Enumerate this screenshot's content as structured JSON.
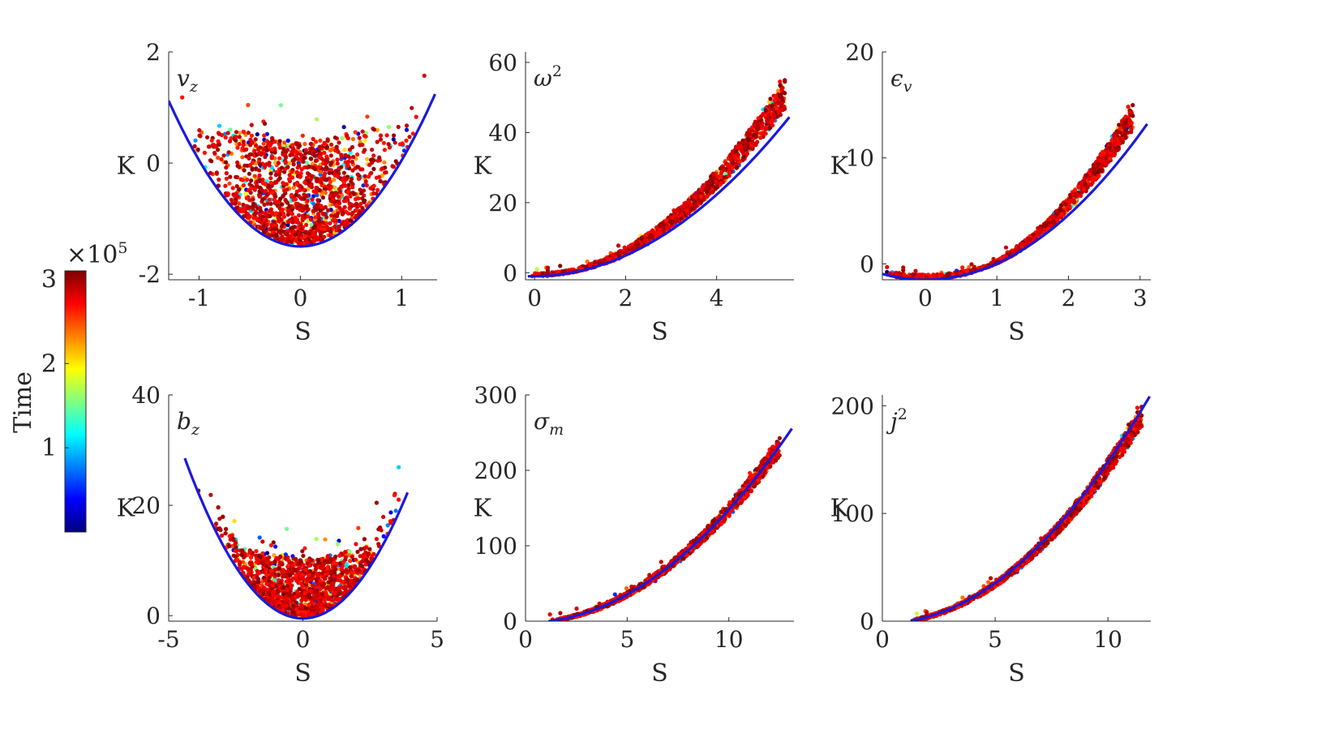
{
  "figure": {
    "colorbar": {
      "label": "Time",
      "multiplier": "×10",
      "exponent": "5",
      "ticks": [
        1,
        2,
        3
      ],
      "range": [
        0,
        3.1
      ],
      "colormap": [
        "#00007f",
        "#0000ff",
        "#0080ff",
        "#00ffff",
        "#80ff80",
        "#ffff00",
        "#ff8000",
        "#ff0000",
        "#7f0000"
      ]
    },
    "fit_color": "#1a1adc"
  },
  "chart_data": [
    {
      "type": "scatter",
      "title": "v",
      "title_sub": "z",
      "xlabel": "S",
      "ylabel": "K",
      "xlim": [
        -1.3,
        1.35
      ],
      "ylim": [
        -2.1,
        2
      ],
      "xticks": [
        -1,
        0,
        1
      ],
      "yticks": [
        -2,
        0,
        2
      ],
      "fit": {
        "kind": "parabola",
        "a": 1.5,
        "b": 0,
        "c": -1.5,
        "x_range": [
          -1.3,
          1.33
        ]
      },
      "cloud": {
        "xc": 0,
        "ymin_offset": 0.05,
        "spread": 0.6,
        "n": 1500
      }
    },
    {
      "type": "scatter",
      "title": "ω",
      "title_sup": "2",
      "xlabel": "S",
      "ylabel": "K",
      "xlim": [
        -0.2,
        5.7
      ],
      "ylim": [
        -2,
        63
      ],
      "xticks": [
        0,
        2,
        4
      ],
      "yticks": [
        0,
        20,
        40,
        60
      ],
      "fit": {
        "kind": "parabola",
        "a": 1.43,
        "b": 0.3,
        "c": -1.5,
        "x_range": [
          -0.15,
          5.6
        ]
      },
      "cloud": {
        "x_range": [
          -0.1,
          5.5
        ],
        "up": 0.15,
        "spread": 1.0,
        "n": 1300
      }
    },
    {
      "type": "scatter",
      "title": "ϵ",
      "title_sub": "v",
      "xlabel": "S",
      "ylabel": "K",
      "xlim": [
        -0.6,
        3.15
      ],
      "ylim": [
        -1.5,
        20
      ],
      "xticks": [
        0,
        1,
        2,
        3
      ],
      "yticks": [
        0,
        10,
        20
      ],
      "fit": {
        "kind": "parabola",
        "a": 1.53,
        "b": 0,
        "c": -1.5,
        "x_range": [
          -0.6,
          3.1
        ]
      },
      "cloud": {
        "x_range": [
          -0.55,
          2.9
        ],
        "up": 0.18,
        "spread": 1.0,
        "n": 1300
      }
    },
    {
      "type": "scatter",
      "title": "b",
      "title_sub": "z",
      "xlabel": "S",
      "ylabel": "K",
      "xlim": [
        -5,
        5
      ],
      "ylim": [
        -1,
        40
      ],
      "xticks": [
        -5,
        0,
        5
      ],
      "yticks": [
        0,
        20,
        40
      ],
      "fit": {
        "kind": "parabola",
        "a": 1.5,
        "b": 0,
        "c": -1.5,
        "x_range": [
          -4.4,
          3.9
        ]
      },
      "cloud": {
        "xc": 0,
        "ymin_offset": 0.3,
        "spread": 7,
        "n": 1500
      }
    },
    {
      "type": "scatter",
      "title": "σ",
      "title_sub": "m",
      "xlabel": "S",
      "ylabel": "K",
      "xlim": [
        0,
        13.2
      ],
      "ylim": [
        0,
        300
      ],
      "xticks": [
        0,
        5,
        10
      ],
      "yticks": [
        0,
        100,
        200,
        300
      ],
      "fit": {
        "kind": "parabola",
        "a": 1.5,
        "b": 0,
        "c": -1.5,
        "x_range": [
          1.15,
          13.1
        ]
      },
      "cloud": {
        "x_range": [
          1.15,
          12.5
        ],
        "up": 0.0,
        "spread": 0.1,
        "n": 1300
      }
    },
    {
      "type": "scatter",
      "title": "j",
      "title_sup": "2",
      "xlabel": "S",
      "ylabel": "K",
      "xlim": [
        0,
        11.9
      ],
      "ylim": [
        0,
        210
      ],
      "xticks": [
        0,
        5,
        10
      ],
      "yticks": [
        0,
        100,
        200
      ],
      "fit": {
        "kind": "parabola",
        "a": 1.5,
        "b": 0,
        "c": -1.5,
        "x_range": [
          1.25,
          11.85
        ]
      },
      "cloud": {
        "x_range": [
          1.25,
          11.5
        ],
        "up": -0.03,
        "spread": 0.09,
        "n": 1300
      }
    }
  ]
}
